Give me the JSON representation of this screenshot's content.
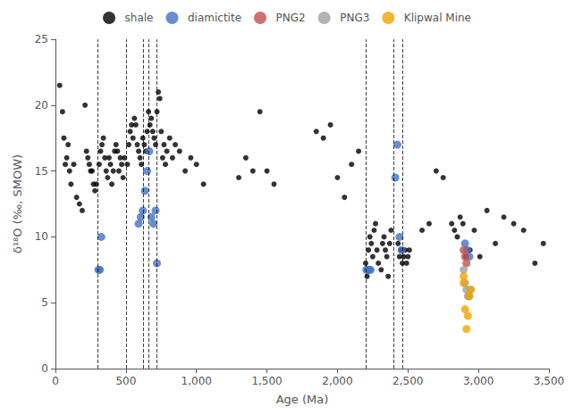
{
  "chart_data": {
    "type": "scatter",
    "xlabel": "Age (Ma)",
    "ylabel": "δ¹⁸O (‰, SMOW)",
    "xlim": [
      0,
      3500
    ],
    "ylim": [
      0,
      25
    ],
    "xticks": [
      0,
      500,
      1000,
      1500,
      2000,
      2500,
      3000,
      3500
    ],
    "yticks": [
      0,
      5,
      10,
      15,
      20,
      25
    ],
    "grid": false,
    "legend": "top",
    "vlines": [
      300,
      500,
      620,
      660,
      720,
      2200,
      2400,
      2460
    ],
    "series": [
      {
        "name": "shale",
        "color": "#000000",
        "x": [
          30,
          50,
          60,
          70,
          80,
          90,
          100,
          110,
          130,
          150,
          170,
          190,
          210,
          220,
          230,
          240,
          250,
          260,
          270,
          280,
          290,
          310,
          320,
          330,
          340,
          350,
          360,
          370,
          380,
          390,
          400,
          410,
          420,
          430,
          440,
          450,
          460,
          470,
          480,
          490,
          510,
          520,
          530,
          540,
          550,
          560,
          570,
          580,
          590,
          600,
          610,
          620,
          630,
          640,
          650,
          660,
          670,
          680,
          690,
          700,
          710,
          720,
          730,
          740,
          750,
          760,
          770,
          780,
          790,
          810,
          830,
          850,
          880,
          920,
          960,
          1000,
          1050,
          1300,
          1350,
          1400,
          1450,
          1500,
          1550,
          1850,
          1900,
          1950,
          2000,
          2050,
          2100,
          2150,
          2200,
          2210,
          2220,
          2230,
          2240,
          2250,
          2260,
          2270,
          2280,
          2290,
          2310,
          2320,
          2330,
          2340,
          2350,
          2360,
          2370,
          2380,
          2430,
          2440,
          2450,
          2460,
          2470,
          2480,
          2490,
          2500,
          2510,
          2600,
          2650,
          2700,
          2750,
          2810,
          2830,
          2850,
          2870,
          2890,
          2910,
          2940,
          2970,
          3010,
          3060,
          3120,
          3180,
          3250,
          3320,
          3400,
          3460
        ],
        "values": [
          21.5,
          19.5,
          17.5,
          15.5,
          16.0,
          17.0,
          15.0,
          14.0,
          15.5,
          13.0,
          12.5,
          12.0,
          20.0,
          16.5,
          16.0,
          15.5,
          15.0,
          15.0,
          14.0,
          13.5,
          14.0,
          15.5,
          16.5,
          17.0,
          17.5,
          16.0,
          15.0,
          14.5,
          16.0,
          15.5,
          14.0,
          15.0,
          16.5,
          17.0,
          16.5,
          15.0,
          16.0,
          15.5,
          14.5,
          16.0,
          15.5,
          17.0,
          18.0,
          18.5,
          17.5,
          19.0,
          18.5,
          17.0,
          16.5,
          16.0,
          15.5,
          17.5,
          17.0,
          16.5,
          18.0,
          19.5,
          18.5,
          19.0,
          18.0,
          17.5,
          17.0,
          19.5,
          21.0,
          20.5,
          18.0,
          16.0,
          17.0,
          15.5,
          16.5,
          17.5,
          16.0,
          17.0,
          16.5,
          15.0,
          16.0,
          15.5,
          14.0,
          14.5,
          16.0,
          15.0,
          19.5,
          15.0,
          14.0,
          18.0,
          17.5,
          18.5,
          14.5,
          13.0,
          15.5,
          16.5,
          8.0,
          7.0,
          9.0,
          10.0,
          9.5,
          8.5,
          10.5,
          11.0,
          9.0,
          8.0,
          7.5,
          9.5,
          10.0,
          9.0,
          8.5,
          7.0,
          9.5,
          10.5,
          9.5,
          8.5,
          9.0,
          8.0,
          8.5,
          9.0,
          8.0,
          8.5,
          9.0,
          10.5,
          11.0,
          15.0,
          14.5,
          11.0,
          10.5,
          10.0,
          11.5,
          11.0,
          8.5,
          9.0,
          10.5,
          8.5,
          12.0,
          9.5,
          11.5,
          11.0,
          10.5,
          8.0,
          9.5
        ]
      },
      {
        "name": "diamictite",
        "color": "#4472C4",
        "x": [
          305,
          315,
          325,
          590,
          605,
          620,
          635,
          650,
          665,
          680,
          695,
          710,
          720,
          2205,
          2215,
          2225,
          2235,
          2410,
          2425,
          2440,
          2455,
          2905,
          2920,
          2935
        ],
        "values": [
          7.5,
          7.5,
          10.0,
          11.0,
          11.5,
          12.0,
          13.5,
          15.0,
          16.5,
          11.5,
          11.0,
          12.0,
          8.0,
          7.5,
          7.5,
          7.5,
          7.5,
          14.5,
          17.0,
          10.0,
          9.0,
          9.5,
          9.0,
          8.5
        ]
      },
      {
        "name": "PNG2",
        "color": "#C0504D",
        "x": [
          2895,
          2905,
          2915
        ],
        "values": [
          9.0,
          8.5,
          8.0
        ]
      },
      {
        "name": "PNG3",
        "color": "#9FA0A0",
        "x": [
          2895,
          2905,
          2915,
          2925,
          2935,
          2945
        ],
        "values": [
          7.5,
          6.5,
          6.0,
          5.5,
          5.5,
          6.0
        ]
      },
      {
        "name": "Klipwal Mine",
        "color": "#F0A500",
        "x": [
          2895,
          2895,
          2905,
          2915,
          2925,
          2935,
          2945
        ],
        "values": [
          7.0,
          6.5,
          4.5,
          3.0,
          4.0,
          5.5,
          6.0
        ]
      }
    ]
  }
}
